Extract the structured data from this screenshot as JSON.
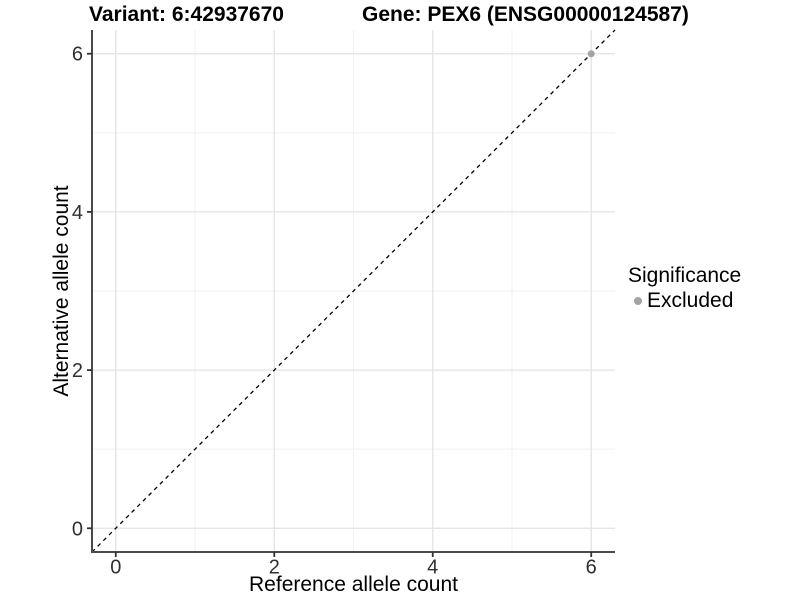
{
  "header": {
    "variant_title": "Variant: 6:42937670",
    "gene_title": "Gene: PEX6 (ENSG00000124587)"
  },
  "chart_data": {
    "type": "scatter",
    "xlabel": "Reference allele count",
    "ylabel": "Alternative allele count",
    "xlim": [
      -0.3,
      6.3
    ],
    "ylim": [
      -0.3,
      6.3
    ],
    "x_ticks": [
      0,
      2,
      4,
      6
    ],
    "y_ticks": [
      0,
      2,
      4,
      6
    ],
    "x_minor_ticks": [
      1,
      3,
      5
    ],
    "y_minor_ticks": [
      1,
      3,
      5
    ],
    "grid": "major+minor",
    "identity_line": {
      "type": "abline",
      "slope": 1,
      "intercept": 0,
      "style": "dashed",
      "color": "#000000"
    },
    "series": [
      {
        "name": "Excluded",
        "color": "#a4a4a4",
        "points": [
          {
            "x": 6,
            "y": 6
          }
        ]
      }
    ],
    "legend": {
      "title": "Significance",
      "position": "right",
      "items": [
        {
          "label": "Excluded",
          "color": "#a4a4a4"
        }
      ]
    }
  }
}
